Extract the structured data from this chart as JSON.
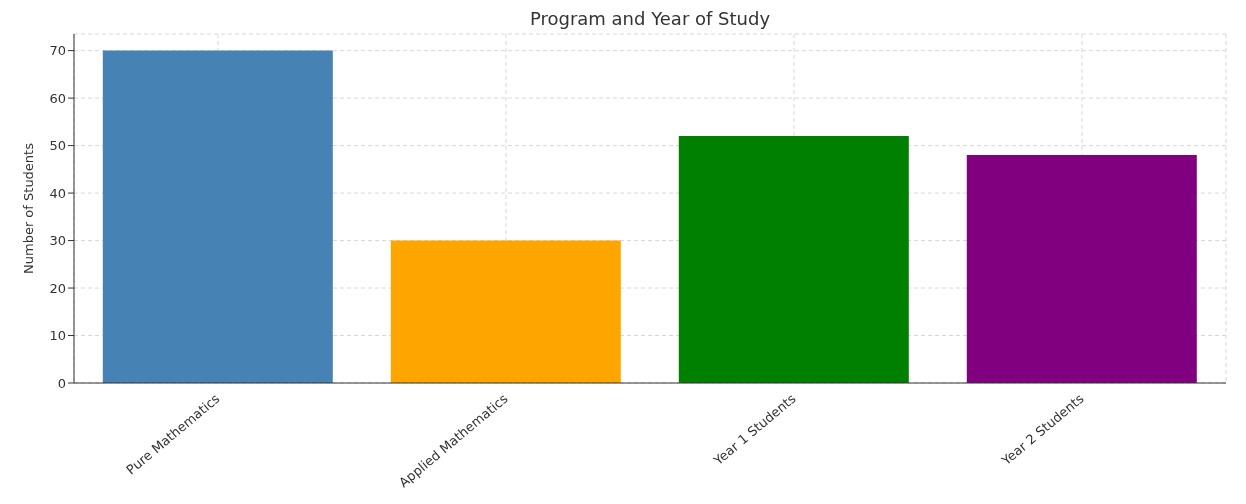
{
  "chart_data": {
    "type": "bar",
    "title": "Program and Year of Study",
    "ylabel": "Number of Students",
    "categories": [
      "Pure Mathematics",
      "Applied Mathematics",
      "Year 1 Students",
      "Year 2 Students"
    ],
    "values": [
      70,
      30,
      52,
      48
    ],
    "colors": [
      "#4682b4",
      "#ffa500",
      "#008000",
      "#800080"
    ],
    "ylim": [
      0,
      73.5
    ],
    "yticks": [
      0,
      10,
      20,
      30,
      40,
      50,
      60,
      70
    ],
    "grid": true
  }
}
